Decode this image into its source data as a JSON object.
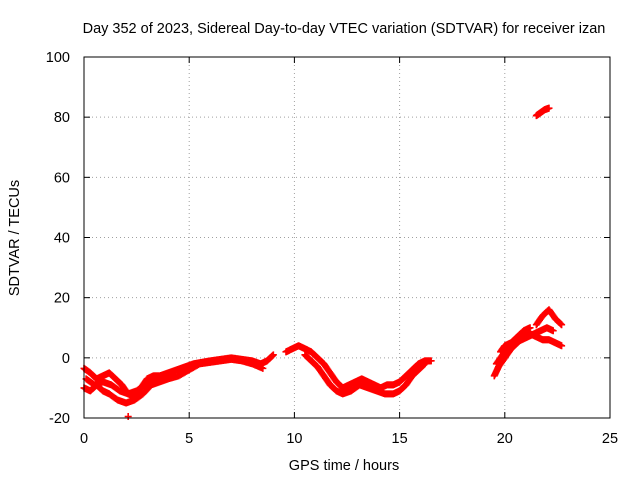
{
  "chart_data": {
    "type": "scatter",
    "title": "Day 352 of 2023, Sidereal Day-to-day VTEC variation (SDTVAR) for receiver izan",
    "xlabel": "GPS time / hours",
    "ylabel": "SDTVAR / TECUs",
    "xlim": [
      0,
      25
    ],
    "ylim": [
      -20,
      100
    ],
    "xticks": [
      0,
      5,
      10,
      15,
      20,
      25
    ],
    "xtick_labels": [
      "0",
      "5",
      "10",
      "15",
      "20",
      "25"
    ],
    "yticks": [
      -20,
      0,
      20,
      40,
      60,
      80,
      100
    ],
    "ytick_labels": [
      "-20",
      "0",
      "20",
      "40",
      "60",
      "80",
      "100"
    ],
    "grid": true,
    "marker": "plus",
    "series": [
      {
        "name": "SDTVAR",
        "color": "#ff0000",
        "tracks": [
          [
            [
              0.0,
              -3.5
            ],
            [
              0.3,
              -5
            ],
            [
              0.6,
              -7
            ],
            [
              0.9,
              -6
            ],
            [
              1.2,
              -5
            ],
            [
              1.5,
              -7
            ],
            [
              1.8,
              -9
            ],
            [
              2.1,
              -12
            ],
            [
              2.4,
              -13
            ],
            [
              2.7,
              -10
            ],
            [
              3.0,
              -7
            ],
            [
              3.3,
              -6
            ],
            [
              3.6,
              -6
            ],
            [
              4.0,
              -5
            ],
            [
              4.4,
              -4
            ],
            [
              4.8,
              -3
            ],
            [
              5.2,
              -2
            ],
            [
              5.6,
              -1.5
            ],
            [
              6.0,
              -1
            ],
            [
              6.5,
              -0.5
            ],
            [
              7.0,
              0
            ],
            [
              7.5,
              -0.5
            ],
            [
              8.0,
              -1
            ],
            [
              8.4,
              -2
            ],
            [
              8.7,
              -1
            ],
            [
              9.0,
              1
            ]
          ],
          [
            [
              0.0,
              -10
            ],
            [
              0.3,
              -11
            ],
            [
              0.6,
              -9
            ],
            [
              0.9,
              -11
            ],
            [
              1.2,
              -12
            ],
            [
              1.6,
              -14
            ],
            [
              2.0,
              -15
            ],
            [
              2.4,
              -14
            ],
            [
              2.8,
              -12
            ],
            [
              3.2,
              -9
            ],
            [
              3.6,
              -8
            ],
            [
              4.0,
              -7
            ],
            [
              4.5,
              -6
            ],
            [
              5.0,
              -4
            ],
            [
              5.5,
              -2
            ],
            [
              6.0,
              -1.5
            ],
            [
              6.5,
              -1
            ],
            [
              7.0,
              -0.5
            ],
            [
              7.5,
              -1
            ],
            [
              8.0,
              -2
            ],
            [
              8.5,
              -3.5
            ]
          ],
          [
            [
              0.1,
              -7
            ],
            [
              0.5,
              -9
            ],
            [
              0.9,
              -8
            ],
            [
              1.3,
              -9
            ],
            [
              1.7,
              -11
            ],
            [
              2.1,
              -12
            ],
            [
              2.5,
              -11
            ],
            [
              2.9,
              -9
            ],
            [
              3.3,
              -8
            ],
            [
              3.7,
              -7
            ],
            [
              4.1,
              -6
            ]
          ],
          [
            [
              2.1,
              -19.5
            ]
          ],
          [
            [
              9.6,
              2
            ],
            [
              9.9,
              3
            ],
            [
              10.2,
              4
            ],
            [
              10.5,
              3
            ],
            [
              10.8,
              2
            ],
            [
              11.1,
              0
            ],
            [
              11.4,
              -2
            ],
            [
              11.7,
              -5
            ],
            [
              12.0,
              -8
            ],
            [
              12.3,
              -10
            ],
            [
              12.6,
              -9
            ],
            [
              12.9,
              -8
            ],
            [
              13.2,
              -7
            ],
            [
              13.5,
              -8
            ],
            [
              13.8,
              -9
            ],
            [
              14.1,
              -10
            ],
            [
              14.4,
              -9
            ],
            [
              14.7,
              -9
            ],
            [
              15.0,
              -8
            ],
            [
              15.3,
              -6
            ],
            [
              15.6,
              -4
            ],
            [
              15.9,
              -2
            ],
            [
              16.2,
              -1
            ],
            [
              16.5,
              -1
            ]
          ],
          [
            [
              10.5,
              1
            ],
            [
              10.8,
              -1
            ],
            [
              11.1,
              -3
            ],
            [
              11.4,
              -6
            ],
            [
              11.7,
              -9
            ],
            [
              12.0,
              -11
            ],
            [
              12.3,
              -12
            ],
            [
              12.7,
              -11
            ],
            [
              13.1,
              -9
            ],
            [
              13.5,
              -10
            ],
            [
              13.9,
              -11
            ],
            [
              14.3,
              -12
            ],
            [
              14.7,
              -12
            ],
            [
              15.0,
              -11
            ],
            [
              15.3,
              -9
            ],
            [
              15.6,
              -6
            ],
            [
              15.9,
              -4
            ],
            [
              16.2,
              -2
            ]
          ],
          [
            [
              19.5,
              -6
            ],
            [
              19.7,
              -3
            ],
            [
              20.0,
              0
            ],
            [
              20.3,
              3
            ],
            [
              20.6,
              5
            ],
            [
              20.9,
              7
            ],
            [
              21.2,
              8
            ],
            [
              21.5,
              7
            ],
            [
              21.8,
              6
            ],
            [
              22.1,
              6
            ],
            [
              22.4,
              5
            ],
            [
              22.7,
              4
            ]
          ],
          [
            [
              19.6,
              -2
            ],
            [
              19.9,
              1
            ],
            [
              20.2,
              3
            ],
            [
              20.5,
              5
            ],
            [
              20.8,
              6
            ],
            [
              21.1,
              7
            ],
            [
              21.4,
              8
            ],
            [
              21.7,
              9
            ],
            [
              22.0,
              10
            ],
            [
              22.3,
              9
            ]
          ],
          [
            [
              19.8,
              2
            ],
            [
              20.0,
              4
            ],
            [
              20.3,
              5
            ],
            [
              20.6,
              7
            ],
            [
              20.9,
              9
            ],
            [
              21.2,
              10
            ]
          ],
          [
            [
              21.5,
              11
            ],
            [
              21.8,
              14
            ],
            [
              22.1,
              16
            ],
            [
              22.4,
              13
            ],
            [
              22.7,
              11
            ]
          ],
          [
            [
              21.5,
              80.5
            ],
            [
              21.7,
              81.5
            ],
            [
              21.9,
              82.5
            ],
            [
              22.1,
              83
            ]
          ]
        ]
      }
    ]
  }
}
